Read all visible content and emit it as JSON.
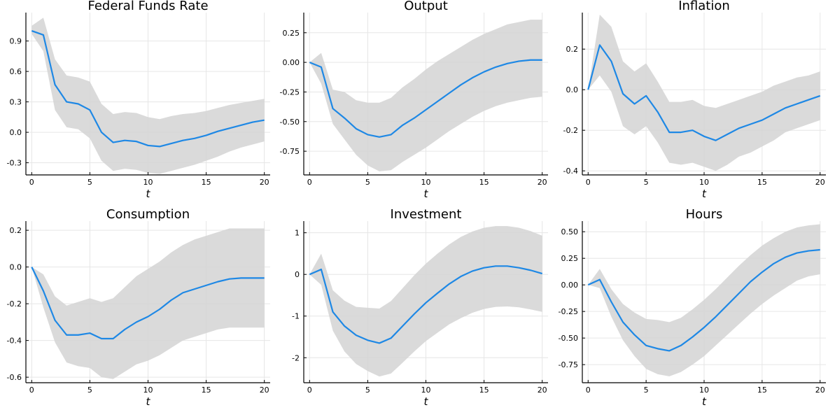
{
  "figure": {
    "accent_color": "#1e88e5",
    "band_color": "#d3d3d3"
  },
  "chart_data": [
    {
      "type": "line",
      "title": "Federal Funds Rate",
      "xlabel": "t",
      "xlim": [
        -0.5,
        20.5
      ],
      "ylim": [
        -0.42,
        1.18
      ],
      "grid": true,
      "legend": "none",
      "xticks": [
        0,
        5,
        10,
        15,
        20
      ],
      "yticks": [
        -0.3,
        0.0,
        0.3,
        0.6,
        0.9
      ],
      "ytick_labels": [
        "-0.3",
        "0.0",
        "0.3",
        "0.6",
        "0.9"
      ],
      "x": [
        0,
        1,
        2,
        3,
        4,
        5,
        6,
        7,
        8,
        9,
        10,
        11,
        12,
        13,
        14,
        15,
        16,
        17,
        18,
        19,
        20
      ],
      "series": [
        {
          "values": [
            1.0,
            0.96,
            0.47,
            0.3,
            0.28,
            0.22,
            0.0,
            -0.1,
            -0.08,
            -0.09,
            -0.13,
            -0.14,
            -0.11,
            -0.08,
            -0.06,
            -0.03,
            0.01,
            0.04,
            0.07,
            0.1,
            0.12
          ],
          "lower": [
            0.97,
            0.8,
            0.22,
            0.05,
            0.03,
            -0.06,
            -0.28,
            -0.38,
            -0.36,
            -0.37,
            -0.4,
            -0.41,
            -0.38,
            -0.35,
            -0.32,
            -0.28,
            -0.24,
            -0.19,
            -0.15,
            -0.12,
            -0.09
          ],
          "upper": [
            1.05,
            1.13,
            0.72,
            0.56,
            0.54,
            0.5,
            0.28,
            0.18,
            0.2,
            0.19,
            0.15,
            0.13,
            0.16,
            0.18,
            0.19,
            0.21,
            0.24,
            0.27,
            0.29,
            0.31,
            0.33
          ]
        }
      ]
    },
    {
      "type": "line",
      "title": "Output",
      "xlabel": "t",
      "xlim": [
        -0.5,
        20.5
      ],
      "ylim": [
        -0.95,
        0.42
      ],
      "grid": true,
      "legend": "none",
      "xticks": [
        0,
        5,
        10,
        15,
        20
      ],
      "yticks": [
        -0.75,
        -0.5,
        -0.25,
        0.0,
        0.25
      ],
      "ytick_labels": [
        "-0.75",
        "-0.50",
        "-0.25",
        "0.00",
        "0.25"
      ],
      "x": [
        0,
        1,
        2,
        3,
        4,
        5,
        6,
        7,
        8,
        9,
        10,
        11,
        12,
        13,
        14,
        15,
        16,
        17,
        18,
        19,
        20
      ],
      "series": [
        {
          "values": [
            0.0,
            -0.04,
            -0.39,
            -0.47,
            -0.56,
            -0.61,
            -0.63,
            -0.61,
            -0.53,
            -0.47,
            -0.4,
            -0.33,
            -0.26,
            -0.19,
            -0.13,
            -0.08,
            -0.04,
            -0.01,
            0.01,
            0.02,
            0.02
          ],
          "lower": [
            0.0,
            -0.18,
            -0.52,
            -0.65,
            -0.78,
            -0.87,
            -0.92,
            -0.91,
            -0.84,
            -0.78,
            -0.72,
            -0.65,
            -0.58,
            -0.52,
            -0.46,
            -0.41,
            -0.37,
            -0.34,
            -0.32,
            -0.3,
            -0.29
          ],
          "upper": [
            0.0,
            0.08,
            -0.23,
            -0.25,
            -0.32,
            -0.34,
            -0.34,
            -0.3,
            -0.21,
            -0.14,
            -0.06,
            0.01,
            0.07,
            0.13,
            0.19,
            0.24,
            0.28,
            0.32,
            0.34,
            0.36,
            0.36
          ]
        }
      ]
    },
    {
      "type": "line",
      "title": "Inflation",
      "xlabel": "t",
      "xlim": [
        -0.5,
        20.5
      ],
      "ylim": [
        -0.42,
        0.38
      ],
      "grid": true,
      "legend": "none",
      "xticks": [
        0,
        5,
        10,
        15,
        20
      ],
      "yticks": [
        -0.4,
        -0.2,
        0.0,
        0.2
      ],
      "ytick_labels": [
        "-0.4",
        "-0.2",
        "0.0",
        "0.2"
      ],
      "x": [
        0,
        1,
        2,
        3,
        4,
        5,
        6,
        7,
        8,
        9,
        10,
        11,
        12,
        13,
        14,
        15,
        16,
        17,
        18,
        19,
        20
      ],
      "series": [
        {
          "values": [
            0.0,
            0.22,
            0.14,
            -0.02,
            -0.07,
            -0.03,
            -0.11,
            -0.21,
            -0.21,
            -0.2,
            -0.23,
            -0.25,
            -0.22,
            -0.19,
            -0.17,
            -0.15,
            -0.12,
            -0.09,
            -0.07,
            -0.05,
            -0.03
          ],
          "lower": [
            0.0,
            0.07,
            -0.01,
            -0.18,
            -0.22,
            -0.18,
            -0.26,
            -0.36,
            -0.37,
            -0.36,
            -0.38,
            -0.4,
            -0.37,
            -0.33,
            -0.31,
            -0.28,
            -0.25,
            -0.21,
            -0.19,
            -0.17,
            -0.15
          ],
          "upper": [
            0.0,
            0.37,
            0.31,
            0.14,
            0.09,
            0.13,
            0.04,
            -0.06,
            -0.06,
            -0.05,
            -0.08,
            -0.09,
            -0.07,
            -0.05,
            -0.03,
            -0.01,
            0.02,
            0.04,
            0.06,
            0.07,
            0.09
          ]
        }
      ]
    },
    {
      "type": "line",
      "title": "Consumption",
      "xlabel": "t",
      "xlim": [
        -0.5,
        20.5
      ],
      "ylim": [
        -0.63,
        0.25
      ],
      "grid": true,
      "legend": "none",
      "xticks": [
        0,
        5,
        10,
        15,
        20
      ],
      "yticks": [
        -0.6,
        -0.4,
        -0.2,
        0.0,
        0.2
      ],
      "ytick_labels": [
        "-0.6",
        "-0.4",
        "-0.2",
        "0.0",
        "0.2"
      ],
      "x": [
        0,
        1,
        2,
        3,
        4,
        5,
        6,
        7,
        8,
        9,
        10,
        11,
        12,
        13,
        14,
        15,
        16,
        17,
        18,
        19,
        20
      ],
      "series": [
        {
          "values": [
            0.0,
            -0.13,
            -0.29,
            -0.37,
            -0.37,
            -0.36,
            -0.39,
            -0.39,
            -0.34,
            -0.3,
            -0.27,
            -0.23,
            -0.18,
            -0.14,
            -0.12,
            -0.1,
            -0.08,
            -0.065,
            -0.06,
            -0.06,
            -0.06
          ],
          "lower": [
            0.0,
            -0.22,
            -0.41,
            -0.52,
            -0.54,
            -0.55,
            -0.6,
            -0.61,
            -0.57,
            -0.53,
            -0.51,
            -0.48,
            -0.44,
            -0.4,
            -0.38,
            -0.36,
            -0.34,
            -0.33,
            -0.33,
            -0.33,
            -0.33
          ],
          "upper": [
            0.0,
            -0.04,
            -0.16,
            -0.21,
            -0.19,
            -0.17,
            -0.19,
            -0.17,
            -0.11,
            -0.05,
            -0.01,
            0.03,
            0.08,
            0.12,
            0.15,
            0.17,
            0.19,
            0.21,
            0.21,
            0.21,
            0.21
          ]
        }
      ]
    },
    {
      "type": "line",
      "title": "Investment",
      "xlabel": "t",
      "xlim": [
        -0.5,
        20.5
      ],
      "ylim": [
        -2.6,
        1.28
      ],
      "grid": true,
      "legend": "none",
      "xticks": [
        0,
        5,
        10,
        15,
        20
      ],
      "yticks": [
        -2,
        -1,
        0,
        1
      ],
      "ytick_labels": [
        "-2",
        "-1",
        "0",
        "1"
      ],
      "x": [
        0,
        1,
        2,
        3,
        4,
        5,
        6,
        7,
        8,
        9,
        10,
        11,
        12,
        13,
        14,
        15,
        16,
        17,
        18,
        19,
        20
      ],
      "series": [
        {
          "values": [
            0.0,
            0.12,
            -0.9,
            -1.24,
            -1.46,
            -1.58,
            -1.65,
            -1.53,
            -1.24,
            -0.95,
            -0.68,
            -0.45,
            -0.23,
            -0.05,
            0.08,
            0.16,
            0.2,
            0.2,
            0.16,
            0.1,
            0.02
          ],
          "lower": [
            0.0,
            -0.25,
            -1.35,
            -1.85,
            -2.15,
            -2.32,
            -2.45,
            -2.38,
            -2.12,
            -1.85,
            -1.6,
            -1.4,
            -1.2,
            -1.05,
            -0.92,
            -0.83,
            -0.78,
            -0.77,
            -0.79,
            -0.84,
            -0.9
          ],
          "upper": [
            0.0,
            0.5,
            -0.38,
            -0.63,
            -0.78,
            -0.8,
            -0.82,
            -0.64,
            -0.33,
            -0.02,
            0.26,
            0.5,
            0.72,
            0.9,
            1.03,
            1.12,
            1.16,
            1.16,
            1.12,
            1.04,
            0.93
          ]
        }
      ]
    },
    {
      "type": "line",
      "title": "Hours",
      "xlabel": "t",
      "xlim": [
        -0.5,
        20.5
      ],
      "ylim": [
        -0.92,
        0.6
      ],
      "grid": true,
      "legend": "none",
      "xticks": [
        0,
        5,
        10,
        15,
        20
      ],
      "yticks": [
        -0.75,
        -0.5,
        -0.25,
        0.0,
        0.25,
        0.5
      ],
      "ytick_labels": [
        "-0.75",
        "-0.50",
        "-0.25",
        "0.00",
        "0.25",
        "0.50"
      ],
      "x": [
        0,
        1,
        2,
        3,
        4,
        5,
        6,
        7,
        8,
        9,
        10,
        11,
        12,
        13,
        14,
        15,
        16,
        17,
        18,
        19,
        20
      ],
      "series": [
        {
          "values": [
            0.0,
            0.05,
            -0.16,
            -0.35,
            -0.47,
            -0.57,
            -0.6,
            -0.62,
            -0.57,
            -0.49,
            -0.4,
            -0.3,
            -0.19,
            -0.08,
            0.03,
            0.12,
            0.2,
            0.26,
            0.3,
            0.32,
            0.33
          ],
          "lower": [
            0.0,
            -0.03,
            -0.3,
            -0.52,
            -0.67,
            -0.79,
            -0.84,
            -0.86,
            -0.82,
            -0.75,
            -0.67,
            -0.57,
            -0.47,
            -0.37,
            -0.27,
            -0.18,
            -0.1,
            -0.03,
            0.04,
            0.08,
            0.1
          ],
          "upper": [
            0.0,
            0.15,
            -0.04,
            -0.18,
            -0.26,
            -0.32,
            -0.33,
            -0.35,
            -0.31,
            -0.23,
            -0.14,
            -0.04,
            0.07,
            0.18,
            0.28,
            0.37,
            0.44,
            0.5,
            0.54,
            0.56,
            0.57
          ]
        }
      ]
    }
  ]
}
